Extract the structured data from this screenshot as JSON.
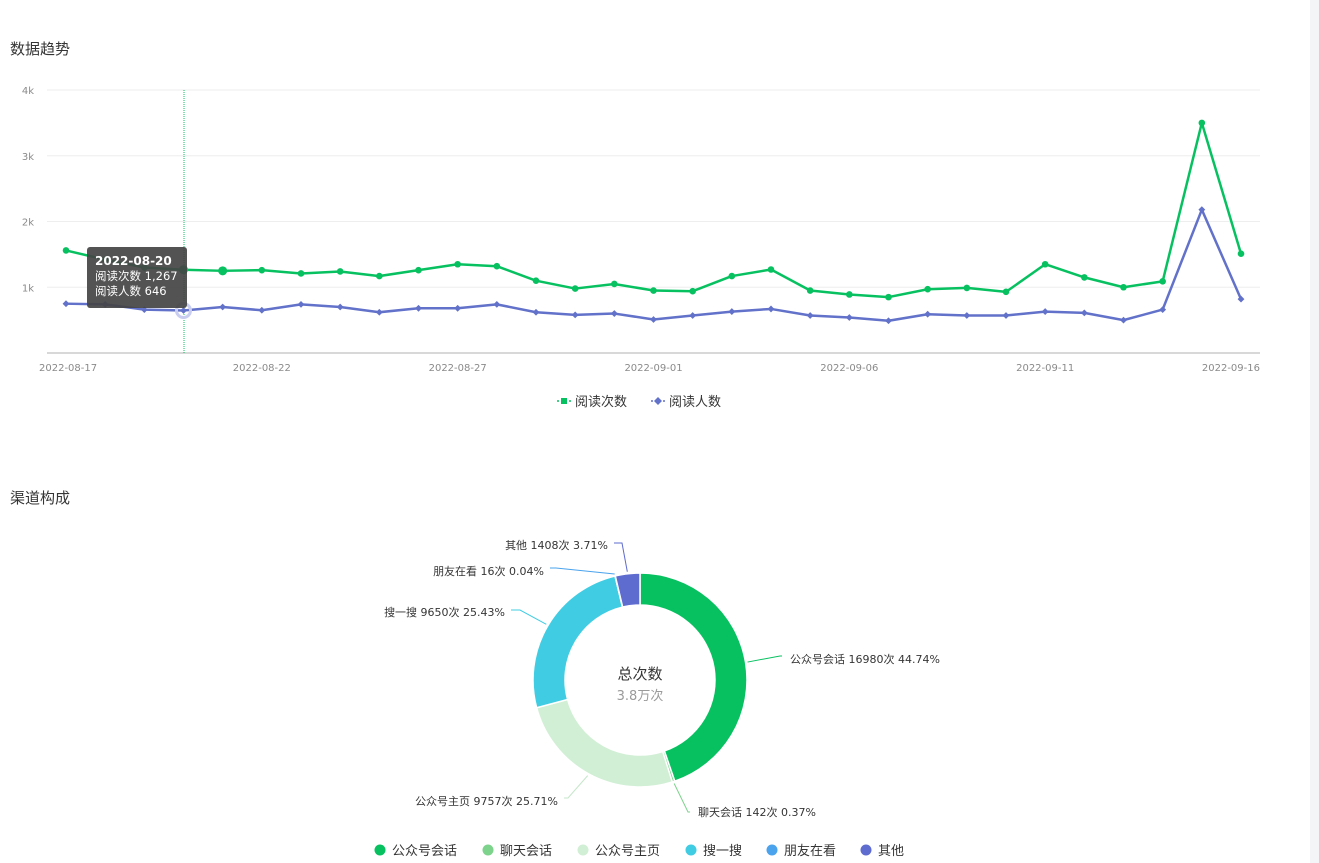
{
  "sections": {
    "trend_title": "数据趋势",
    "channel_title": "渠道构成"
  },
  "tooltip": {
    "date": "2022-08-20",
    "line1": "阅读次数 1,267",
    "line2": "阅读人数 646"
  },
  "colors": {
    "reads": "#07c160",
    "readers": "#6271c9",
    "grid": "#eeeeee",
    "axis": "#cccccc"
  },
  "chart_data": [
    {
      "type": "line",
      "x": [
        "2022-08-17",
        "2022-08-18",
        "2022-08-19",
        "2022-08-20",
        "2022-08-21",
        "2022-08-22",
        "2022-08-23",
        "2022-08-24",
        "2022-08-25",
        "2022-08-26",
        "2022-08-27",
        "2022-08-28",
        "2022-08-29",
        "2022-08-30",
        "2022-08-31",
        "2022-09-01",
        "2022-09-02",
        "2022-09-03",
        "2022-09-04",
        "2022-09-05",
        "2022-09-06",
        "2022-09-07",
        "2022-09-08",
        "2022-09-09",
        "2022-09-10",
        "2022-09-11",
        "2022-09-12",
        "2022-09-13",
        "2022-09-14",
        "2022-09-15",
        "2022-09-16"
      ],
      "x_tick_labels": [
        "2022-08-17",
        "2022-08-22",
        "2022-08-27",
        "2022-09-01",
        "2022-09-06",
        "2022-09-11",
        "2022-09-16"
      ],
      "x_tick_dates": [
        "2022-08-17",
        "2022-08-22",
        "2022-08-27",
        "2022-09-01",
        "2022-09-06",
        "2022-09-11",
        "2022-09-16"
      ],
      "y_tick_labels": [
        "1k",
        "2k",
        "3k",
        "4k"
      ],
      "y_ticks": [
        1000,
        2000,
        3000,
        4000
      ],
      "ylim": [
        0,
        4000
      ],
      "grid": true,
      "legend": "bottom-center",
      "series": [
        {
          "name": "阅读次数",
          "color": "#07c160",
          "values": [
            1560,
            1420,
            1300,
            1267,
            1250,
            1260,
            1210,
            1240,
            1170,
            1260,
            1350,
            1320,
            1100,
            980,
            1050,
            950,
            940,
            1170,
            1270,
            950,
            890,
            850,
            970,
            990,
            930,
            1350,
            1150,
            1000,
            1090,
            3500,
            1510
          ]
        },
        {
          "name": "阅读人数",
          "color": "#6271c9",
          "values": [
            750,
            740,
            660,
            646,
            700,
            650,
            740,
            700,
            620,
            680,
            680,
            740,
            620,
            580,
            600,
            510,
            570,
            630,
            670,
            570,
            540,
            490,
            590,
            570,
            570,
            630,
            610,
            500,
            660,
            2180,
            820
          ]
        }
      ]
    },
    {
      "type": "pie",
      "center_label": "总次数",
      "center_value": "3.8万次",
      "legend": "bottom-center",
      "slices": [
        {
          "name": "公众号会话",
          "value": 16980,
          "percent": 44.74,
          "color": "#07c160",
          "label": "公众号会话 16980次 44.74%"
        },
        {
          "name": "聊天会话",
          "value": 142,
          "percent": 0.37,
          "color": "#7dd38c",
          "label": "聊天会话 142次 0.37%"
        },
        {
          "name": "公众号主页",
          "value": 9757,
          "percent": 25.71,
          "color": "#d1efd5",
          "label": "公众号主页 9757次 25.71%"
        },
        {
          "name": "搜一搜",
          "value": 9650,
          "percent": 25.43,
          "color": "#40cce2",
          "label": "搜一搜 9650次 25.43%"
        },
        {
          "name": "朋友在看",
          "value": 16,
          "percent": 0.04,
          "color": "#4aa3ec",
          "label": "朋友在看 16次 0.04%"
        },
        {
          "name": "其他",
          "value": 1408,
          "percent": 3.71,
          "color": "#5e6bcf",
          "label": "其他 1408次 3.71%"
        }
      ]
    }
  ]
}
